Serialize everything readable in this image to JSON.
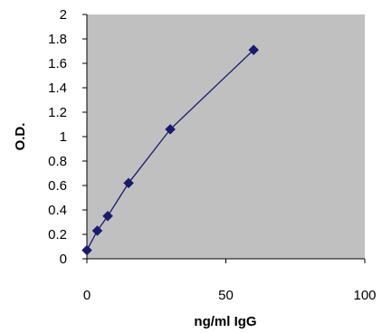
{
  "chart_data": {
    "type": "scatter",
    "xlabel": "ng/ml IgG",
    "ylabel": "O.D.",
    "xlim": [
      0,
      100
    ],
    "ylim": [
      0,
      2
    ],
    "x_ticks": [
      0,
      50,
      100
    ],
    "y_ticks": [
      0,
      0.2,
      0.4,
      0.6,
      0.8,
      1,
      1.2,
      1.4,
      1.6,
      1.8,
      2
    ],
    "x_tick_labels": [
      "0",
      "50",
      "100"
    ],
    "y_tick_labels": [
      "0",
      "0.2",
      "0.4",
      "0.6",
      "0.8",
      "1",
      "1.2",
      "1.4",
      "1.6",
      "1.8",
      "2"
    ],
    "grid": false,
    "series": [
      {
        "x": [
          0,
          3.75,
          7.5,
          15,
          30,
          60
        ],
        "y": [
          0.07,
          0.23,
          0.35,
          0.62,
          1.06,
          1.71
        ],
        "color": "#1a1a6e",
        "marker": "diamond",
        "line": true
      }
    ],
    "plot_background": "#c0c0c0"
  }
}
